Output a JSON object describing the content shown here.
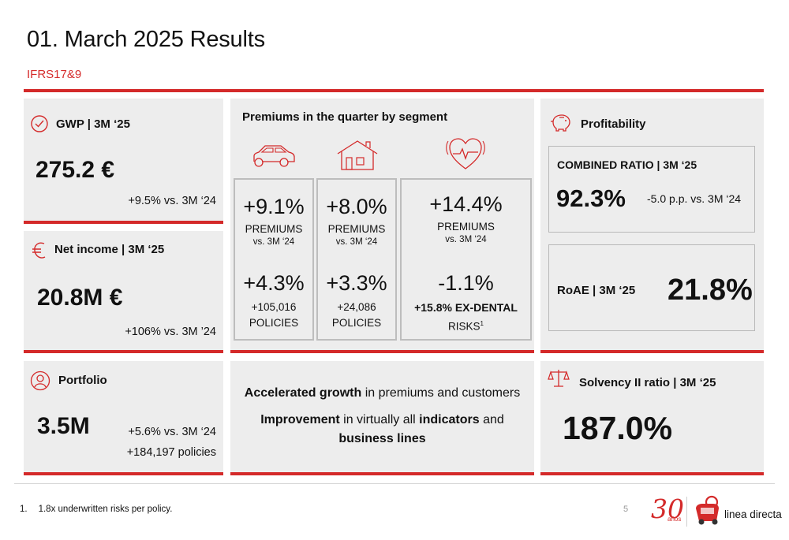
{
  "header": {
    "title": "01. March 2025 Results",
    "subtitle": "IFRS17&9"
  },
  "gwp": {
    "label": "GWP | 3M ‘25",
    "value": "275.2 €",
    "change": "+9.5% vs. 3M ‘24"
  },
  "net_income": {
    "label": "Net income | 3M ‘25",
    "value": "20.8M €",
    "change": "+106% vs. 3M ’24"
  },
  "portfolio": {
    "label": "Portfolio",
    "value": "3.5M",
    "change": "+5.6% vs. 3M ‘24",
    "policies": "+184,197 policies"
  },
  "segments": {
    "title": "Premiums in the quarter by segment",
    "motor": {
      "premiums_pct": "+9.1%",
      "premiums_label": "PREMIUMS",
      "premiums_vs": "vs. 3M ‘24",
      "policies_pct": "+4.3%",
      "policies_count": "+105,016",
      "policies_label": "POLICIES"
    },
    "home": {
      "premiums_pct": "+8.0%",
      "premiums_label": "PREMIUMS",
      "premiums_vs": "vs. 3M ‘24",
      "policies_pct": "+3.3%",
      "policies_count": "+24,086",
      "policies_label": "POLICIES"
    },
    "health": {
      "premiums_pct": "+14.4%",
      "premiums_label": "PREMIUMS",
      "premiums_vs": "vs. 3M ‘24",
      "policies_pct": "-1.1%",
      "exdental": "+15.8% EX-DENTAL",
      "risks": "RISKS",
      "footnote_ref": "1"
    }
  },
  "summary": {
    "line1_bold": "Accelerated growth",
    "line1_rest": " in premiums and customers",
    "line2_bold_a": "Improvement",
    "line2_mid": " in virtually all ",
    "line2_bold_b": "indicators",
    "line2_end": " and",
    "line3_bold": "business lines"
  },
  "profitability": {
    "title": "Profitability",
    "combined_label": "COMBINED RATIO | 3M ‘25",
    "combined_value": "92.3%",
    "combined_change": "-5.0 p.p. vs. 3M ‘24",
    "roae_label": "RoAE | 3M ‘25",
    "roae_value": "21.8%"
  },
  "solvency": {
    "label": "Solvency II ratio | 3M ‘25",
    "value": "187.0%"
  },
  "footer": {
    "footnote_num": "1.",
    "footnote_text": "1.8x underwritten risks per policy.",
    "page": "5",
    "logo_30": "30",
    "logo_anos": "años",
    "brand": "linea directa"
  },
  "colors": {
    "accent": "#d42a2a",
    "panel": "#ededed"
  },
  "icons": [
    "check-circle-icon",
    "euro-icon",
    "person-icon",
    "car-icon",
    "house-icon",
    "heart-pulse-icon",
    "piggy-bank-icon",
    "scales-icon",
    "brand-logo-icon"
  ]
}
